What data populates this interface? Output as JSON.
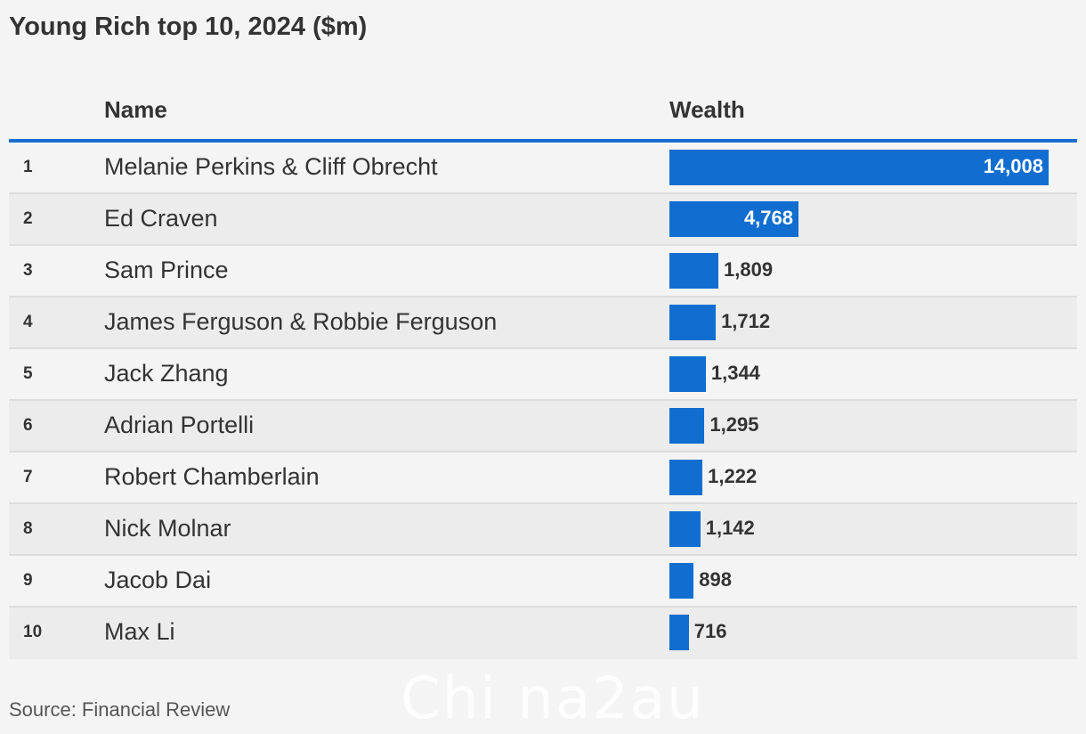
{
  "chart_data": {
    "type": "bar",
    "title": "Young Rich top 10, 2024 ($m)",
    "columns": {
      "rank": "",
      "name": "Name",
      "wealth": "Wealth"
    },
    "rows": [
      {
        "rank": "1",
        "name": "Melanie Perkins & Cliff Obrecht",
        "value": 14008,
        "label": "14,008"
      },
      {
        "rank": "2",
        "name": "Ed Craven",
        "value": 4768,
        "label": "4,768"
      },
      {
        "rank": "3",
        "name": "Sam Prince",
        "value": 1809,
        "label": "1,809"
      },
      {
        "rank": "4",
        "name": "James Ferguson & Robbie Ferguson",
        "value": 1712,
        "label": "1,712"
      },
      {
        "rank": "5",
        "name": "Jack Zhang",
        "value": 1344,
        "label": "1,344"
      },
      {
        "rank": "6",
        "name": "Adrian Portelli",
        "value": 1295,
        "label": "1,295"
      },
      {
        "rank": "7",
        "name": "Robert Chamberlain",
        "value": 1222,
        "label": "1,222"
      },
      {
        "rank": "8",
        "name": "Nick Molnar",
        "value": 1142,
        "label": "1,142"
      },
      {
        "rank": "9",
        "name": "Jacob Dai",
        "value": 898,
        "label": "898"
      },
      {
        "rank": "10",
        "name": "Max Li",
        "value": 716,
        "label": "716"
      }
    ],
    "bar_color": "#116ed0",
    "xlim": [
      0,
      14008
    ],
    "source": "Source: Financial Review"
  },
  "watermark": "Chi na2au"
}
